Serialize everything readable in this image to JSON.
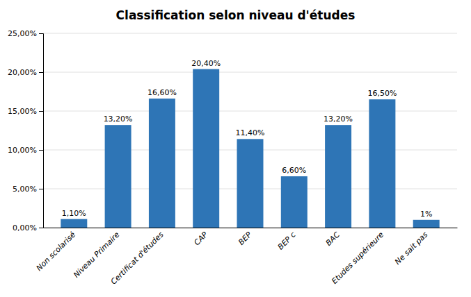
{
  "chart_data": {
    "type": "bar",
    "title": "Classification selon niveau d'études",
    "categories": [
      "Non scolarisé",
      "Niveau Primaire",
      "Certificat d'études",
      "CAP",
      "BEP",
      "BEP c",
      "BAC",
      "Etudes supérieure",
      "Ne sait pas"
    ],
    "values": [
      1.1,
      13.2,
      16.6,
      20.4,
      11.4,
      6.6,
      13.2,
      16.5,
      1.0
    ],
    "value_labels": [
      "1,10%",
      "13,20%",
      "16,60%",
      "20,40%",
      "11,40%",
      "6,60%",
      "13,20%",
      "16,50%",
      "1%"
    ],
    "data_labels": true,
    "color": "#2E75B6",
    "ylim": [
      0,
      25
    ],
    "yticks": [
      {
        "value": 0,
        "label": "0,00%"
      },
      {
        "value": 5,
        "label": "5,00%"
      },
      {
        "value": 10,
        "label": "10,00%"
      },
      {
        "value": 15,
        "label": "15,00%"
      },
      {
        "value": 20,
        "label": "20,00%"
      },
      {
        "value": 25,
        "label": "25,00%"
      }
    ],
    "grid": true
  }
}
